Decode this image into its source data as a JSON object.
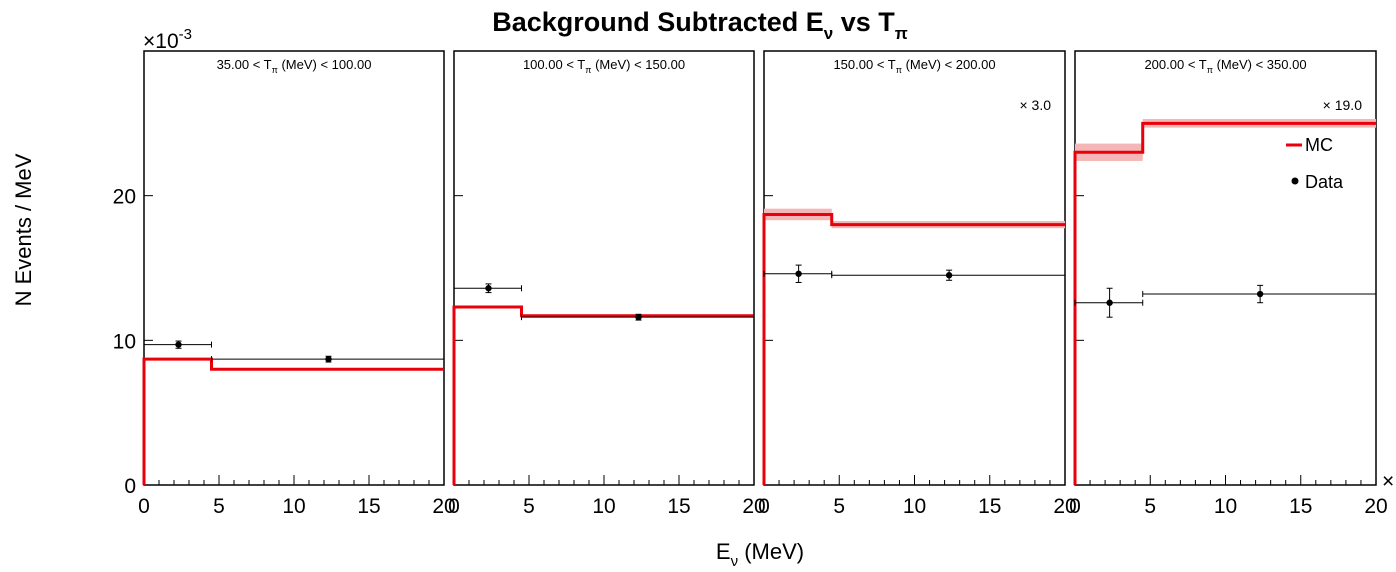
{
  "chart_data": {
    "type": "line",
    "title": "Background Subtracted E",
    "title_sub": "ν",
    "title_mid": " vs T",
    "title_sub2": "π",
    "xlabel": "E",
    "xlabel_sub": "ν",
    "xlabel_unit": " (MeV)",
    "ylabel": "N Events / MeV",
    "y_exponent_label": "×10",
    "y_exponent": "-3",
    "xlim": [
      0,
      20
    ],
    "ylim": [
      0,
      30
    ],
    "x_ticks": [
      "0",
      "5",
      "10",
      "15",
      "20"
    ],
    "y_ticks": [
      "0",
      "10",
      "20"
    ],
    "y_tick_values": [
      0,
      10,
      20
    ],
    "x_tick_values": [
      0,
      5,
      10,
      15,
      20
    ],
    "x_axis_corner_mark": "×",
    "bin_edges": [
      0,
      4.5,
      20
    ],
    "legend": {
      "mc": "MC",
      "data": "Data",
      "position": "top-right"
    },
    "panels": [
      {
        "label_pre": "35.00 < T",
        "label_sub": "π",
        "label_post": " (MeV) < 100.00",
        "scale": "",
        "mc": [
          8.7,
          8.0
        ],
        "mc_err": [
          0.0,
          0.0
        ],
        "data_x": [
          2.3,
          12.3
        ],
        "data_y": [
          9.7,
          8.7
        ],
        "data_yerr": [
          0.25,
          0.2
        ]
      },
      {
        "label_pre": "100.00 < T",
        "label_sub": "π",
        "label_post": " (MeV) < 150.00",
        "scale": "",
        "mc": [
          12.3,
          11.7
        ],
        "mc_err": [
          0.0,
          0.0
        ],
        "data_x": [
          2.3,
          12.3
        ],
        "data_y": [
          13.6,
          11.6
        ],
        "data_yerr": [
          0.3,
          0.2
        ]
      },
      {
        "label_pre": "150.00 < T",
        "label_sub": "π",
        "label_post": " (MeV) < 200.00",
        "scale": "× 3.0",
        "mc": [
          18.7,
          18.0
        ],
        "mc_err": [
          0.4,
          0.25
        ],
        "data_x": [
          2.3,
          12.3
        ],
        "data_y": [
          14.6,
          14.5
        ],
        "data_yerr": [
          0.6,
          0.35
        ]
      },
      {
        "label_pre": "200.00 < T",
        "label_sub": "π",
        "label_post": " (MeV) < 350.00",
        "scale": "× 19.0",
        "mc": [
          23.0,
          25.0
        ],
        "mc_err": [
          0.6,
          0.3
        ],
        "data_x": [
          2.3,
          12.3
        ],
        "data_y": [
          12.6,
          13.2
        ],
        "data_yerr": [
          1.0,
          0.6
        ]
      }
    ],
    "colors": {
      "mc": "#e8000b",
      "mc_band": "#f4b6b6",
      "data": "#000000"
    }
  }
}
